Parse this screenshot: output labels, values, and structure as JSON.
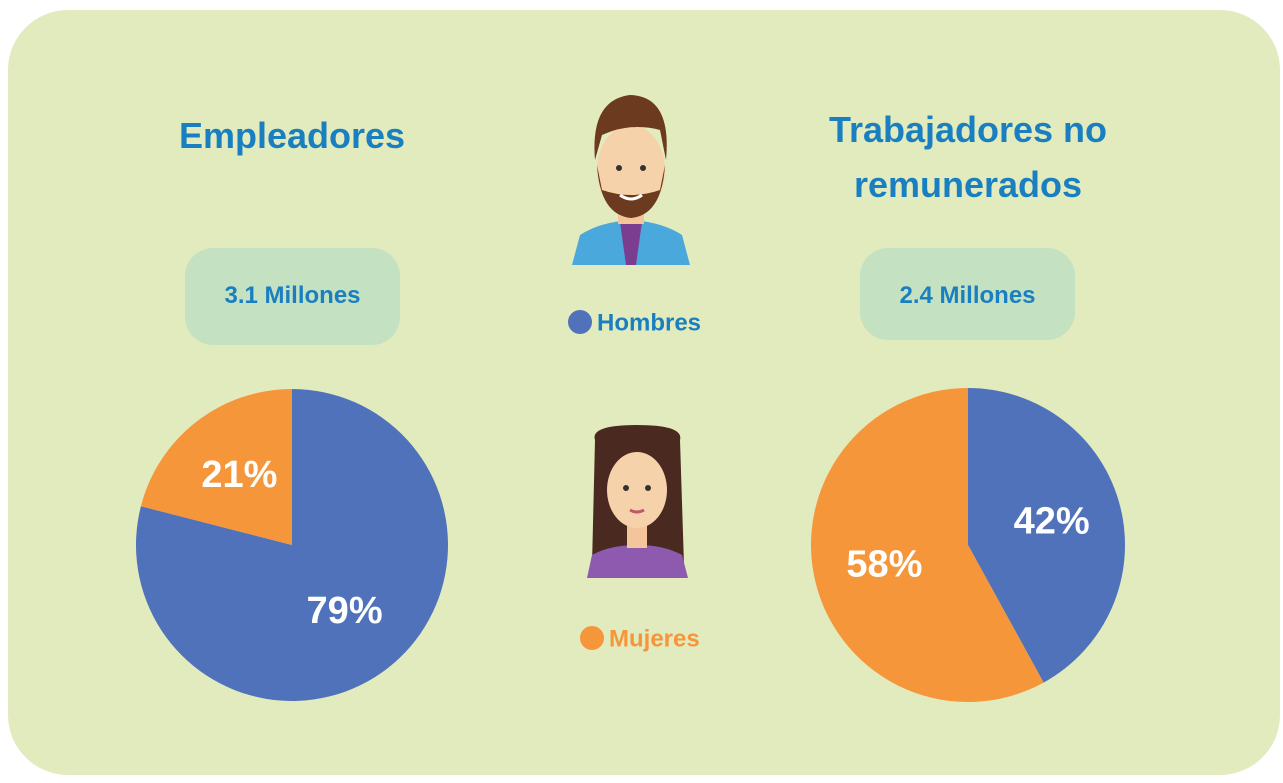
{
  "chart_data": [
    {
      "type": "pie",
      "title": "Empleadores",
      "subtitle": "3.1 Millones",
      "categories": [
        "Hombres",
        "Mujeres"
      ],
      "colors": [
        "#4f72bb",
        "#f6963b"
      ],
      "values": [
        79,
        21
      ],
      "value_labels": [
        "79%",
        "21%"
      ]
    },
    {
      "type": "pie",
      "title": "Trabajadores no remunerados",
      "subtitle": "2.4 Millones",
      "categories": [
        "Hombres",
        "Mujeres"
      ],
      "colors": [
        "#4f72bb",
        "#f6963b"
      ],
      "values": [
        42,
        58
      ],
      "value_labels": [
        "42%",
        "58%"
      ]
    }
  ]
}
